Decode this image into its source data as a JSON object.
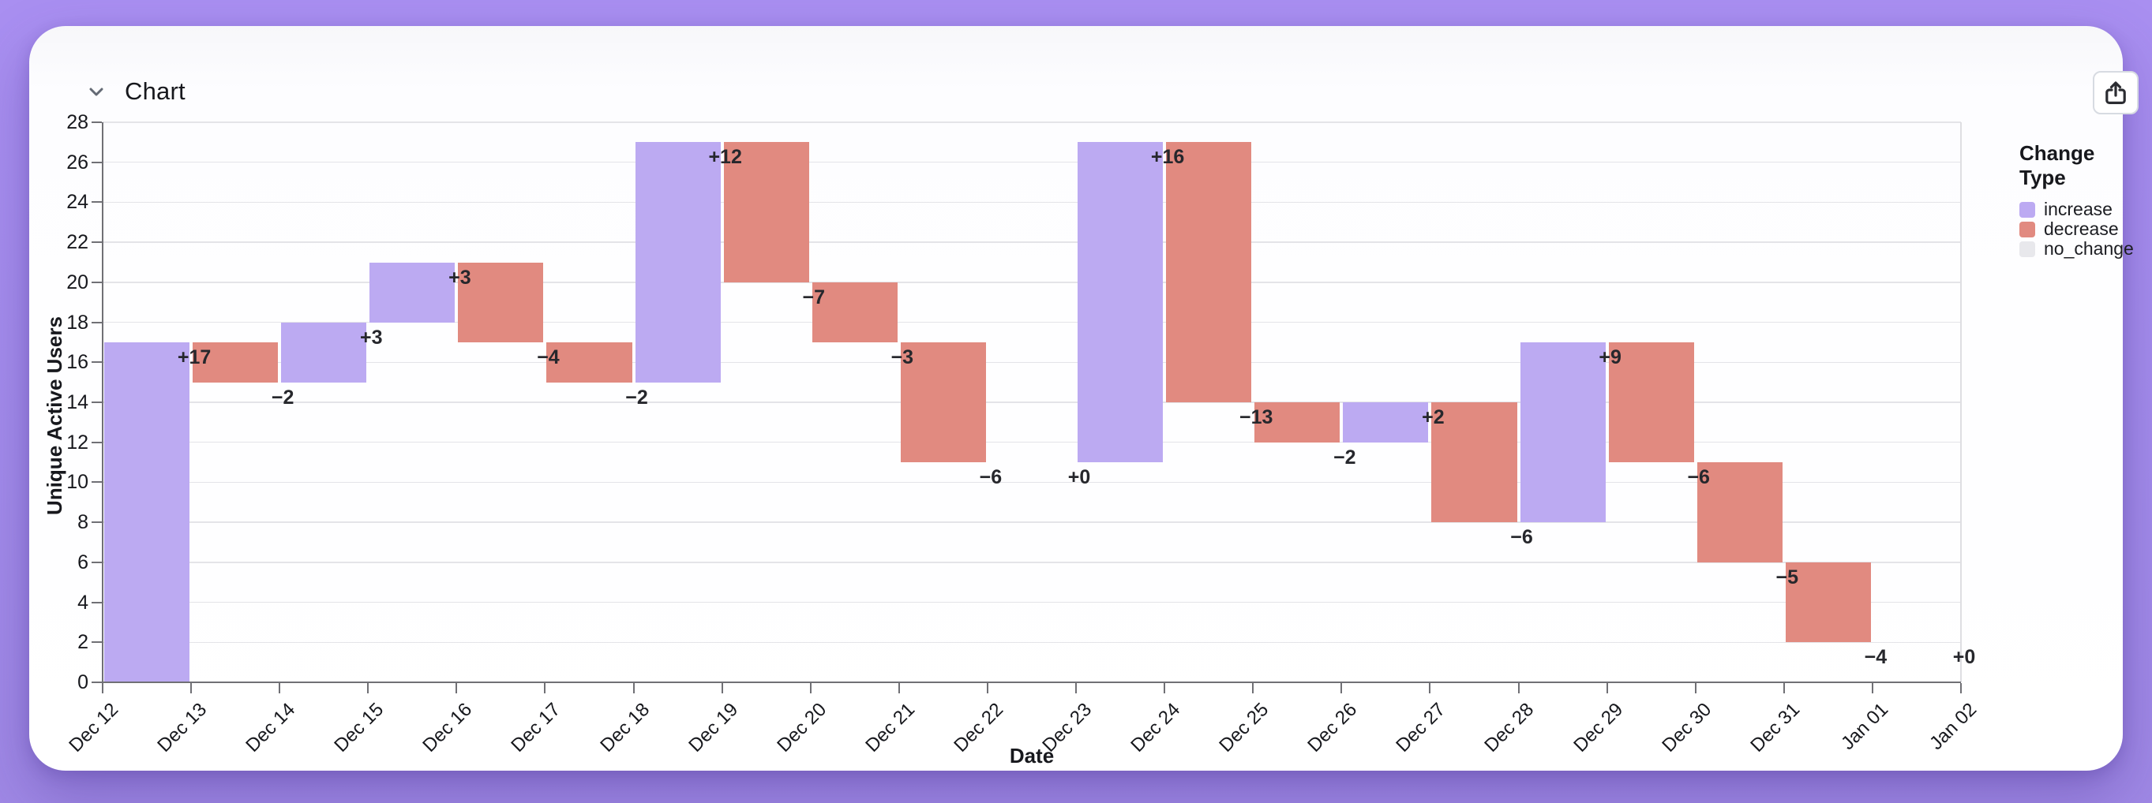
{
  "page": {
    "background_top": "#a98ff1",
    "background_bottom": "#9f88e5",
    "card_color": "#ffffff"
  },
  "header": {
    "title": "Chart",
    "collapse_icon": "chevron-down",
    "share_icon": "share-up-arrow"
  },
  "legend": {
    "title": "Change Type",
    "items": [
      {
        "label": "increase",
        "color": "#bcaaf2"
      },
      {
        "label": "decrease",
        "color": "#e18a80"
      },
      {
        "label": "no_change",
        "color": "#e8e8ec"
      }
    ]
  },
  "chart_data": {
    "type": "bar",
    "subtype": "waterfall",
    "title": "",
    "xlabel": "Date",
    "ylabel": "Unique Active Users",
    "ylim": [
      0,
      28
    ],
    "y_ticks": [
      0,
      2,
      4,
      6,
      8,
      10,
      12,
      14,
      16,
      18,
      20,
      22,
      24,
      26,
      28
    ],
    "x_tick_labels": [
      "Dec 12",
      "Dec 13",
      "Dec 14",
      "Dec 15",
      "Dec 16",
      "Dec 17",
      "Dec 18",
      "Dec 19",
      "Dec 20",
      "Dec 21",
      "Dec 22",
      "Dec 23",
      "Dec 24",
      "Dec 25",
      "Dec 26",
      "Dec 27",
      "Dec 28",
      "Dec 29",
      "Dec 30",
      "Dec 31",
      "Jan 01",
      "Jan 02"
    ],
    "grid": true,
    "legend_position": "right",
    "colors": {
      "increase": "#bcaaf2",
      "decrease": "#e18a80",
      "no_change": "#e8e8ec"
    },
    "steps": [
      {
        "from": "Dec 12",
        "to": "Dec 13",
        "change": 17,
        "label": "+17",
        "type": "increase",
        "start": 0,
        "end": 17
      },
      {
        "from": "Dec 13",
        "to": "Dec 14",
        "change": -2,
        "label": "−2",
        "type": "decrease",
        "start": 17,
        "end": 15
      },
      {
        "from": "Dec 14",
        "to": "Dec 15",
        "change": 3,
        "label": "+3",
        "type": "increase",
        "start": 15,
        "end": 18
      },
      {
        "from": "Dec 15",
        "to": "Dec 16",
        "change": 3,
        "label": "+3",
        "type": "increase",
        "start": 18,
        "end": 21
      },
      {
        "from": "Dec 16",
        "to": "Dec 17",
        "change": -4,
        "label": "−4",
        "type": "decrease",
        "start": 21,
        "end": 17
      },
      {
        "from": "Dec 17",
        "to": "Dec 18",
        "change": -2,
        "label": "−2",
        "type": "decrease",
        "start": 17,
        "end": 15
      },
      {
        "from": "Dec 18",
        "to": "Dec 19",
        "change": 12,
        "label": "+12",
        "type": "increase",
        "start": 15,
        "end": 27
      },
      {
        "from": "Dec 19",
        "to": "Dec 20",
        "change": -7,
        "label": "−7",
        "type": "decrease",
        "start": 27,
        "end": 20
      },
      {
        "from": "Dec 20",
        "to": "Dec 21",
        "change": -3,
        "label": "−3",
        "type": "decrease",
        "start": 20,
        "end": 17
      },
      {
        "from": "Dec 21",
        "to": "Dec 22",
        "change": -6,
        "label": "−6",
        "type": "decrease",
        "start": 17,
        "end": 11
      },
      {
        "from": "Dec 22",
        "to": "Dec 23",
        "change": 0,
        "label": "+0",
        "type": "no_change",
        "start": 11,
        "end": 11
      },
      {
        "from": "Dec 23",
        "to": "Dec 24",
        "change": 16,
        "label": "+16",
        "type": "increase",
        "start": 11,
        "end": 27
      },
      {
        "from": "Dec 24",
        "to": "Dec 25",
        "change": -13,
        "label": "−13",
        "type": "decrease",
        "start": 27,
        "end": 14
      },
      {
        "from": "Dec 25",
        "to": "Dec 26",
        "change": -2,
        "label": "−2",
        "type": "decrease",
        "start": 14,
        "end": 12
      },
      {
        "from": "Dec 26",
        "to": "Dec 27",
        "change": 2,
        "label": "+2",
        "type": "increase",
        "start": 12,
        "end": 14
      },
      {
        "from": "Dec 27",
        "to": "Dec 28",
        "change": -6,
        "label": "−6",
        "type": "decrease",
        "start": 14,
        "end": 8
      },
      {
        "from": "Dec 28",
        "to": "Dec 29",
        "change": 9,
        "label": "+9",
        "type": "increase",
        "start": 8,
        "end": 17
      },
      {
        "from": "Dec 29",
        "to": "Dec 30",
        "change": -6,
        "label": "−6",
        "type": "decrease",
        "start": 17,
        "end": 11
      },
      {
        "from": "Dec 30",
        "to": "Dec 31",
        "change": -5,
        "label": "−5",
        "type": "decrease",
        "start": 11,
        "end": 6
      },
      {
        "from": "Dec 31",
        "to": "Jan 01",
        "change": -4,
        "label": "−4",
        "type": "decrease",
        "start": 6,
        "end": 2
      },
      {
        "from": "Jan 01",
        "to": "Jan 02",
        "change": 0,
        "label": "+0",
        "type": "no_change",
        "start": 2,
        "end": 2
      }
    ]
  }
}
